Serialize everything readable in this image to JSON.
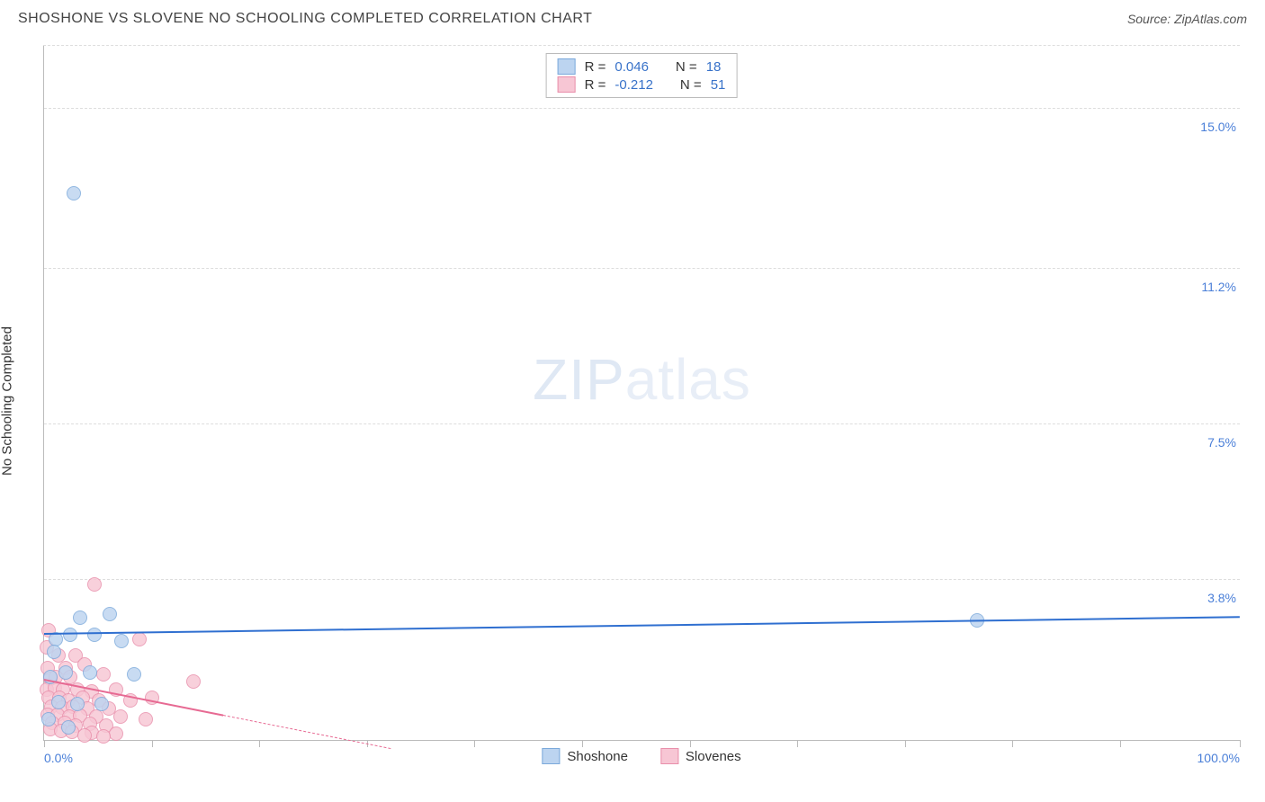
{
  "title": "SHOSHONE VS SLOVENE NO SCHOOLING COMPLETED CORRELATION CHART",
  "source": "Source: ZipAtlas.com",
  "y_axis_label": "No Schooling Completed",
  "watermark": {
    "bold": "ZIP",
    "light": "atlas"
  },
  "x_axis": {
    "min_label": "0.0%",
    "max_label": "100.0%",
    "min": 0,
    "max": 100,
    "ticks_pct": [
      0,
      9,
      18,
      27,
      36,
      45,
      54,
      63,
      72,
      81,
      90,
      100
    ]
  },
  "y_axis": {
    "min": 0,
    "max": 16.5,
    "gridlines": [
      {
        "value": 15.0,
        "label": "15.0%"
      },
      {
        "value": 11.2,
        "label": "11.2%"
      },
      {
        "value": 7.5,
        "label": "7.5%"
      },
      {
        "value": 3.8,
        "label": "3.8%"
      }
    ]
  },
  "series": [
    {
      "name": "Shoshone",
      "fill": "#bcd4f0",
      "stroke": "#7ba9db",
      "marker_size": 16,
      "stats": {
        "R": "0.046",
        "N": "18"
      },
      "trend": {
        "color": "#2f6fd0",
        "width": 2,
        "dash": "solid",
        "y_at_xmin": 2.55,
        "y_at_xmax": 2.95
      },
      "points": [
        {
          "x": 2.5,
          "y": 13.0
        },
        {
          "x": 78,
          "y": 2.85
        },
        {
          "x": 1.0,
          "y": 2.4
        },
        {
          "x": 3.0,
          "y": 2.9
        },
        {
          "x": 5.5,
          "y": 3.0
        },
        {
          "x": 0.8,
          "y": 2.1
        },
        {
          "x": 2.2,
          "y": 2.5
        },
        {
          "x": 4.2,
          "y": 2.5
        },
        {
          "x": 6.5,
          "y": 2.35
        },
        {
          "x": 0.5,
          "y": 1.5
        },
        {
          "x": 1.8,
          "y": 1.6
        },
        {
          "x": 3.8,
          "y": 1.6
        },
        {
          "x": 7.5,
          "y": 1.55
        },
        {
          "x": 1.2,
          "y": 0.9
        },
        {
          "x": 2.8,
          "y": 0.85
        },
        {
          "x": 4.8,
          "y": 0.85
        },
        {
          "x": 0.4,
          "y": 0.5
        },
        {
          "x": 2.0,
          "y": 0.3
        }
      ]
    },
    {
      "name": "Slovenes",
      "fill": "#f7c6d4",
      "stroke": "#e98fab",
      "marker_size": 16,
      "stats": {
        "R": "-0.212",
        "N": "51"
      },
      "trend": {
        "color": "#e76a93",
        "width": 2,
        "dash": "solid-then-dashed",
        "y_at_xmin": 1.45,
        "y_at_xmax": -4.2,
        "solid_until_x": 15,
        "dash_until_x": 29
      },
      "points": [
        {
          "x": 4.2,
          "y": 3.7
        },
        {
          "x": 0.4,
          "y": 2.6
        },
        {
          "x": 0.2,
          "y": 2.2
        },
        {
          "x": 8.0,
          "y": 2.4
        },
        {
          "x": 1.2,
          "y": 2.0
        },
        {
          "x": 2.6,
          "y": 2.0
        },
        {
          "x": 0.3,
          "y": 1.7
        },
        {
          "x": 1.8,
          "y": 1.7
        },
        {
          "x": 3.4,
          "y": 1.8
        },
        {
          "x": 0.5,
          "y": 1.45
        },
        {
          "x": 1.0,
          "y": 1.5
        },
        {
          "x": 2.2,
          "y": 1.5
        },
        {
          "x": 5.0,
          "y": 1.55
        },
        {
          "x": 12.5,
          "y": 1.4
        },
        {
          "x": 0.2,
          "y": 1.2
        },
        {
          "x": 0.9,
          "y": 1.25
        },
        {
          "x": 1.6,
          "y": 1.2
        },
        {
          "x": 2.8,
          "y": 1.2
        },
        {
          "x": 4.0,
          "y": 1.15
        },
        {
          "x": 6.0,
          "y": 1.2
        },
        {
          "x": 0.4,
          "y": 1.0
        },
        {
          "x": 1.3,
          "y": 1.0
        },
        {
          "x": 2.0,
          "y": 0.95
        },
        {
          "x": 3.2,
          "y": 1.0
        },
        {
          "x": 4.6,
          "y": 0.95
        },
        {
          "x": 7.2,
          "y": 0.95
        },
        {
          "x": 9.0,
          "y": 1.0
        },
        {
          "x": 0.6,
          "y": 0.8
        },
        {
          "x": 1.5,
          "y": 0.78
        },
        {
          "x": 2.4,
          "y": 0.8
        },
        {
          "x": 3.6,
          "y": 0.75
        },
        {
          "x": 5.4,
          "y": 0.75
        },
        {
          "x": 0.3,
          "y": 0.6
        },
        {
          "x": 1.1,
          "y": 0.6
        },
        {
          "x": 2.1,
          "y": 0.55
        },
        {
          "x": 3.0,
          "y": 0.58
        },
        {
          "x": 4.4,
          "y": 0.55
        },
        {
          "x": 6.4,
          "y": 0.55
        },
        {
          "x": 8.5,
          "y": 0.5
        },
        {
          "x": 0.7,
          "y": 0.4
        },
        {
          "x": 1.7,
          "y": 0.4
        },
        {
          "x": 2.6,
          "y": 0.35
        },
        {
          "x": 3.8,
          "y": 0.38
        },
        {
          "x": 5.2,
          "y": 0.35
        },
        {
          "x": 0.5,
          "y": 0.25
        },
        {
          "x": 1.4,
          "y": 0.22
        },
        {
          "x": 2.3,
          "y": 0.2
        },
        {
          "x": 4.0,
          "y": 0.18
        },
        {
          "x": 6.0,
          "y": 0.15
        },
        {
          "x": 3.4,
          "y": 0.1
        },
        {
          "x": 5.0,
          "y": 0.08
        }
      ]
    }
  ],
  "legend_labels": {
    "shoshone": "Shoshone",
    "slovenes": "Slovenes"
  }
}
